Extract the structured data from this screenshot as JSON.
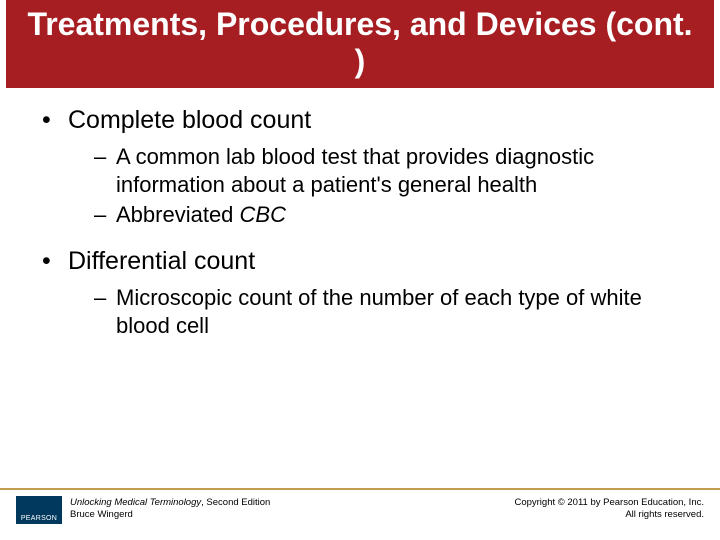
{
  "colors": {
    "title_bg": "#a61e22",
    "title_fg": "#ffffff",
    "body_text": "#000000",
    "footer_rule": "#c0a050",
    "logo_bg": "#00395d",
    "page_bg": "#ffffff"
  },
  "typography": {
    "title_fontsize_pt": 24,
    "level1_fontsize_pt": 19,
    "level2_fontsize_pt": 16,
    "footer_fontsize_pt": 7,
    "font_family": "Arial"
  },
  "title": "Treatments, Procedures, and Devices (cont. )",
  "bullets": [
    {
      "text": "Complete blood count",
      "children": [
        {
          "text": "A common lab blood test that provides diagnostic information about a patient's general health"
        },
        {
          "text_prefix": "Abbreviated ",
          "text_italic": "CBC"
        }
      ]
    },
    {
      "text": "Differential count",
      "children": [
        {
          "text": "Microscopic count of the number of each type of white blood cell"
        }
      ]
    }
  ],
  "footer": {
    "logo_text": "PEARSON",
    "book_title": "Unlocking Medical Terminology",
    "edition_suffix": ", Second Edition",
    "author": "Bruce Wingerd",
    "copyright_line1": "Copyright © 2011 by Pearson Education, Inc.",
    "copyright_line2": "All rights reserved."
  }
}
